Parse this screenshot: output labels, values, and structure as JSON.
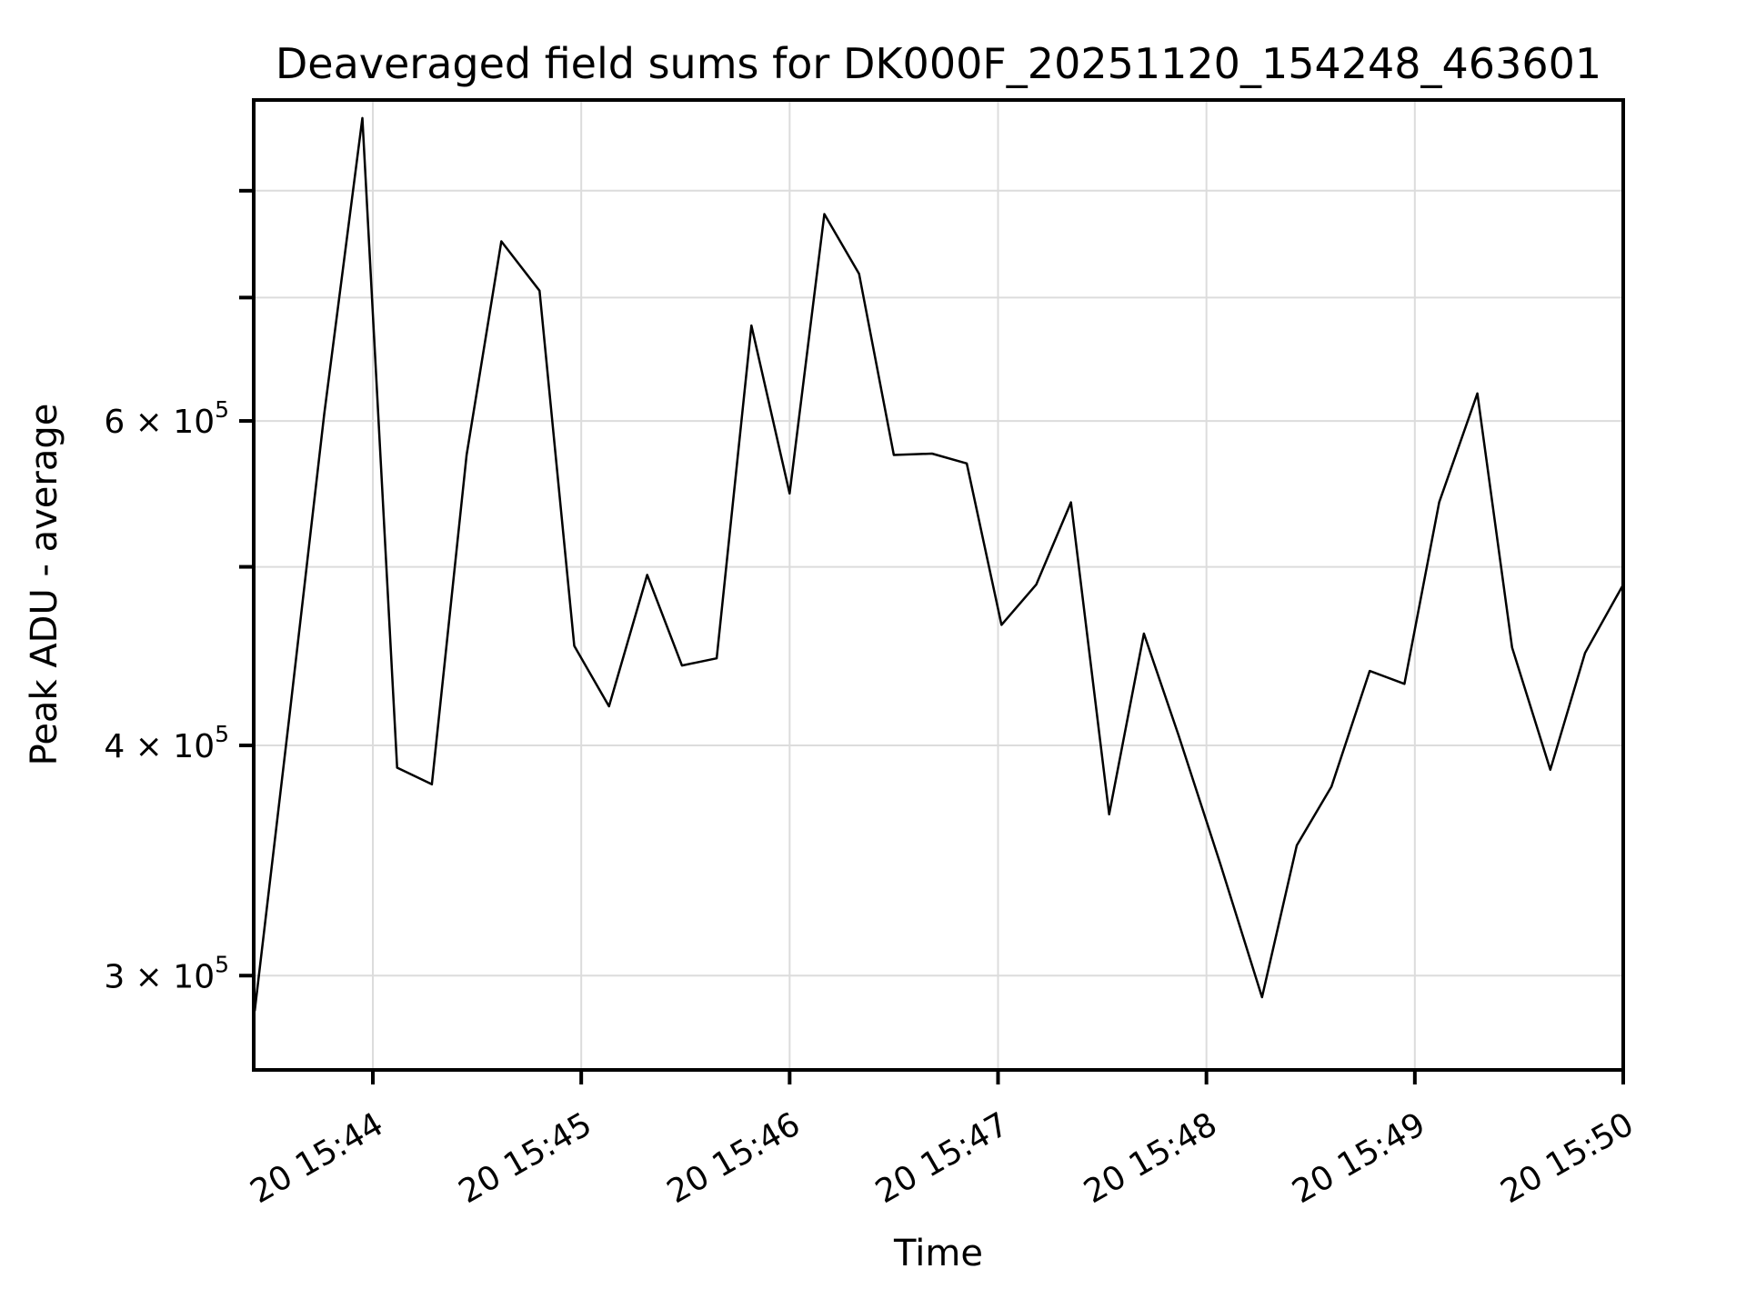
{
  "chart_data": {
    "type": "line",
    "title": "Deaveraged field sums for DK000F_20251120_154248_463601",
    "xlabel": "Time",
    "ylabel": "Peak ADU - average",
    "yscale": "log",
    "grid": true,
    "legend": "none",
    "line_color": "#000000",
    "grid_color": "#dcdcdc",
    "ylim": [
      266000,
      896000
    ],
    "xlim": [
      "20 15:43:26",
      "20 15:50:00"
    ],
    "x_ticks": [
      {
        "time": "20 15:44:00",
        "label": "20 15:44"
      },
      {
        "time": "20 15:45:00",
        "label": "20 15:45"
      },
      {
        "time": "20 15:46:00",
        "label": "20 15:46"
      },
      {
        "time": "20 15:47:00",
        "label": "20 15:47"
      },
      {
        "time": "20 15:48:00",
        "label": "20 15:48"
      },
      {
        "time": "20 15:49:00",
        "label": "20 15:49"
      },
      {
        "time": "20 15:50:00",
        "label": "20 15:50"
      }
    ],
    "y_ticks": [
      {
        "value": 300000,
        "label_base": "3 × 10",
        "label_exp": "5"
      },
      {
        "value": 400000,
        "label_base": "4 × 10",
        "label_exp": "5"
      },
      {
        "value": 500000,
        "label_base": "",
        "label_exp": ""
      },
      {
        "value": 600000,
        "label_base": "6 × 10",
        "label_exp": "5"
      },
      {
        "value": 700000,
        "label_base": "",
        "label_exp": ""
      },
      {
        "value": 800000,
        "label_base": "",
        "label_exp": ""
      }
    ],
    "series": [
      {
        "name": "deaveraged-field-sums",
        "points": [
          [
            "20 15:43:26",
            287000
          ],
          [
            "20 15:43:36",
            415000
          ],
          [
            "20 15:43:46",
            605000
          ],
          [
            "20 15:43:57",
            876000
          ],
          [
            "20 15:44:07",
            389000
          ],
          [
            "20 15:44:17",
            381000
          ],
          [
            "20 15:44:27",
            575000
          ],
          [
            "20 15:44:37",
            751000
          ],
          [
            "20 15:44:48",
            706000
          ],
          [
            "20 15:44:58",
            453000
          ],
          [
            "20 15:45:08",
            420000
          ],
          [
            "20 15:45:19",
            495000
          ],
          [
            "20 15:45:29",
            442000
          ],
          [
            "20 15:45:39",
            446000
          ],
          [
            "20 15:45:49",
            676000
          ],
          [
            "20 15:46:00",
            548000
          ],
          [
            "20 15:46:10",
            777000
          ],
          [
            "20 15:46:20",
            721000
          ],
          [
            "20 15:46:30",
            575000
          ],
          [
            "20 15:46:41",
            576000
          ],
          [
            "20 15:46:51",
            569000
          ],
          [
            "20 15:47:01",
            465000
          ],
          [
            "20 15:47:11",
            489000
          ],
          [
            "20 15:47:21",
            542000
          ],
          [
            "20 15:47:32",
            367000
          ],
          [
            "20 15:47:42",
            460000
          ],
          [
            "20 15:47:52",
            405000
          ],
          [
            "20 15:48:04",
            345000
          ],
          [
            "20 15:48:16",
            292000
          ],
          [
            "20 15:48:26",
            353000
          ],
          [
            "20 15:48:36",
            380000
          ],
          [
            "20 15:48:47",
            439000
          ],
          [
            "20 15:48:57",
            432000
          ],
          [
            "20 15:49:07",
            542000
          ],
          [
            "20 15:49:18",
            621000
          ],
          [
            "20 15:49:28",
            452000
          ],
          [
            "20 15:49:39",
            388000
          ],
          [
            "20 15:49:49",
            449000
          ],
          [
            "20 15:50:00",
            489000
          ]
        ]
      }
    ]
  }
}
